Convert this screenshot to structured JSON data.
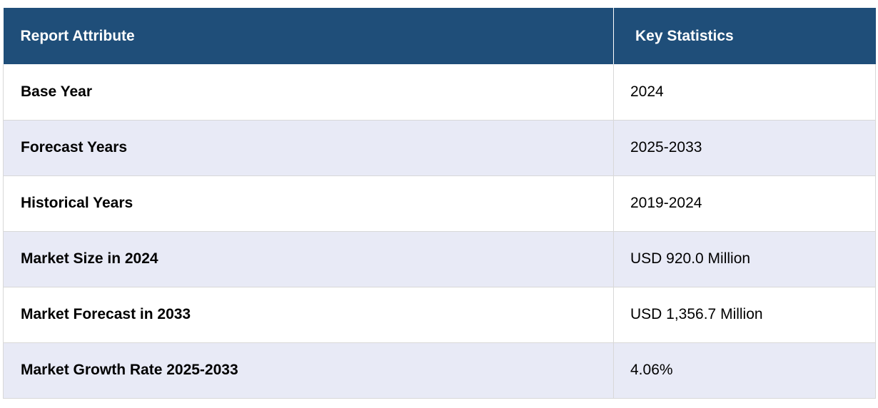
{
  "header": {
    "col1": "Report Attribute",
    "col2": "Key Statistics"
  },
  "rows": [
    {
      "attribute": "Base Year",
      "value": "2024"
    },
    {
      "attribute": "Forecast Years",
      "value": "2025-2033"
    },
    {
      "attribute": "Historical Years",
      "value": "2019-2024"
    },
    {
      "attribute": "Market Size in 2024",
      "value": "USD 920.0 Million"
    },
    {
      "attribute": "Market Forecast in 2033",
      "value": "USD 1,356.7 Million"
    },
    {
      "attribute": "Market Growth Rate 2025-2033",
      "value": "4.06%"
    }
  ],
  "colors": {
    "header_bg": "#1f4e79",
    "row_alt_bg": "#e8eaf6"
  }
}
